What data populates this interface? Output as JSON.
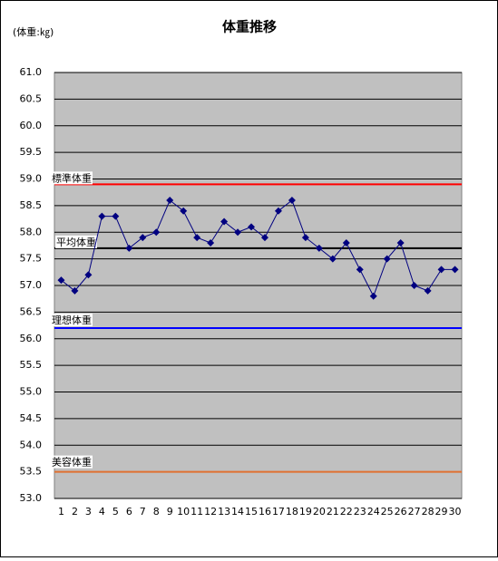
{
  "chart_data": {
    "type": "line",
    "title": "体重推移",
    "unit_label": "(体重:㎏)",
    "categories": [
      1,
      2,
      3,
      4,
      5,
      6,
      7,
      8,
      9,
      10,
      11,
      12,
      13,
      14,
      15,
      16,
      17,
      18,
      19,
      20,
      21,
      22,
      23,
      24,
      25,
      26,
      27,
      28,
      29,
      30
    ],
    "series": [
      {
        "color": "#000080",
        "values": [
          57.1,
          56.9,
          57.2,
          58.3,
          58.3,
          57.7,
          57.9,
          58.0,
          58.6,
          58.4,
          57.9,
          57.8,
          58.2,
          58.0,
          58.1,
          57.9,
          58.4,
          58.6,
          57.9,
          57.7,
          57.5,
          57.8,
          57.3,
          56.8,
          57.5,
          57.8,
          57.0,
          56.9,
          57.3,
          57.3
        ]
      }
    ],
    "reference_lines": [
      {
        "name": "標準体重",
        "value": 58.9,
        "color": "#ff0000"
      },
      {
        "name": "平均体重",
        "value": 57.7,
        "color": "#000000"
      },
      {
        "name": "理想体重",
        "value": 56.2,
        "color": "#0000ff"
      },
      {
        "name": "美容体重",
        "value": 53.5,
        "color": "#e07030"
      }
    ],
    "ylim": [
      53,
      61
    ],
    "yticks": [
      {
        "value": 53,
        "label": "53.0"
      },
      53.5,
      {
        "value": 54,
        "label": "54.0"
      },
      54.5,
      {
        "value": 55,
        "label": "55.0"
      },
      55.5,
      {
        "value": 56,
        "label": "56.0"
      },
      56.5,
      {
        "value": 57,
        "label": "57.0"
      },
      57.5,
      {
        "value": 58,
        "label": "58.0"
      },
      58.5,
      {
        "value": 59,
        "label": "59.0"
      },
      59.5,
      {
        "value": 60,
        "label": "60.0"
      },
      60.5,
      {
        "value": 61,
        "label": "61.0"
      }
    ],
    "grid": true,
    "plot_background": "#c0c0c0"
  }
}
